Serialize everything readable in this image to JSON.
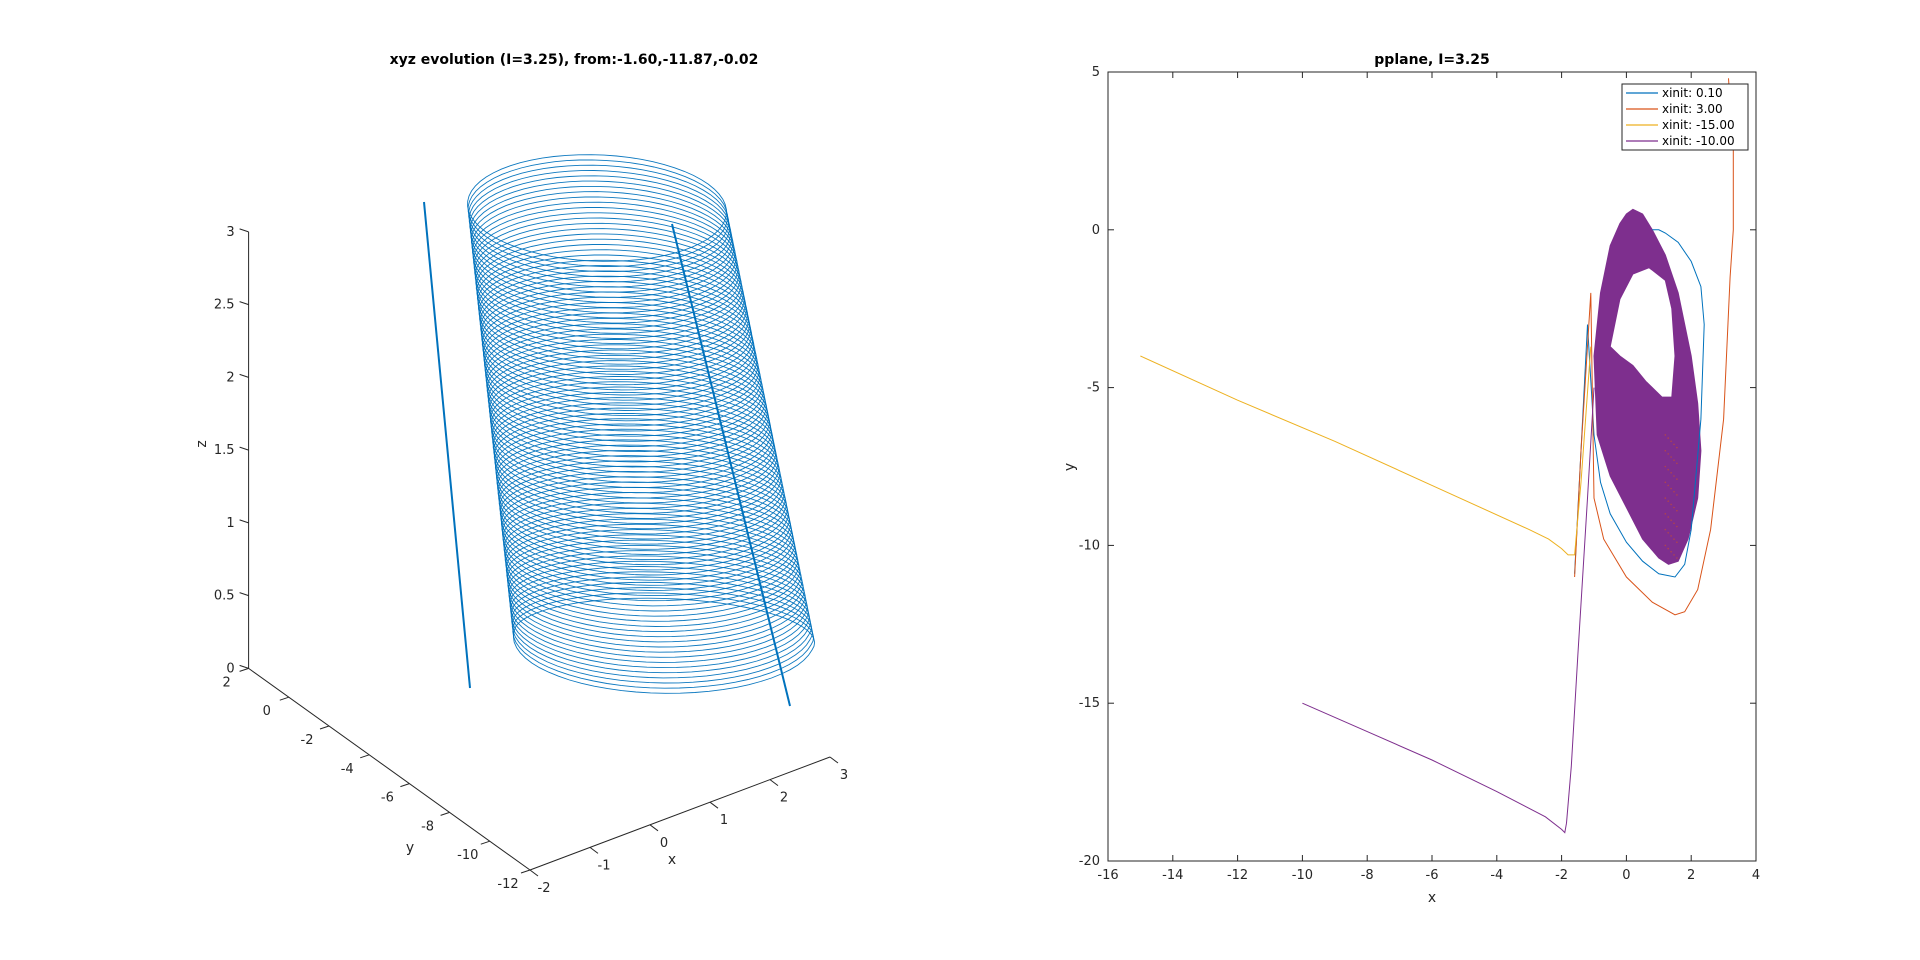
{
  "chart_data": [
    {
      "type": "line",
      "view": "3d",
      "title": "xyz evolution (I=3.25), from:-1.60,-11.87,-0.02",
      "xlabel": "x",
      "ylabel": "y",
      "zlabel": "z",
      "xlim": [
        -2,
        3
      ],
      "ylim": [
        -12,
        2
      ],
      "zlim": [
        0,
        3
      ],
      "x_ticks": [
        "-2",
        "-1",
        "0",
        "1",
        "2",
        "3"
      ],
      "y_ticks": [
        "2",
        "0",
        "-2",
        "-4",
        "-6",
        "-8",
        "-10",
        "-12"
      ],
      "z_ticks": [
        "0",
        "0.5",
        "1",
        "1.5",
        "2",
        "2.5",
        "3"
      ],
      "grid": false,
      "series": [
        {
          "color": "#0072BD",
          "description_points": {
            "x": [
              -1.6,
              -1.5,
              -1.0,
              0.0,
              1.0,
              2.0,
              2.3,
              2.0,
              1.0,
              0.0,
              -1.0,
              -1.5
            ],
            "y": [
              -11.87,
              -11.0,
              -9.5,
              -8.0,
              -6.5,
              -5.0,
              -4.0,
              -1.0,
              0.6,
              0.2,
              -1.5,
              -6.0
            ],
            "z": [
              -0.02,
              0.3,
              0.8,
              1.3,
              1.8,
              2.3,
              2.8,
              3.0,
              2.9,
              2.7,
              2.5,
              1.5
            ]
          }
        }
      ]
    },
    {
      "type": "line",
      "title": "pplane, I=3.25",
      "xlabel": "x",
      "ylabel": "y",
      "xlim": [
        -16,
        4
      ],
      "ylim": [
        -20,
        5
      ],
      "x_ticks": [
        "-16",
        "-14",
        "-12",
        "-10",
        "-8",
        "-6",
        "-4",
        "-2",
        "0",
        "2",
        "4"
      ],
      "y_ticks": [
        "5",
        "0",
        "-5",
        "-10",
        "-15",
        "-20"
      ],
      "legend_position": "top-right",
      "grid": false,
      "series": [
        {
          "name": "xinit: 0.10",
          "color": "#0072BD",
          "x": [
            -1.6,
            -1.4,
            -1.2,
            -1.0,
            -0.8,
            -0.5,
            0.0,
            0.5,
            1.0,
            1.5,
            1.8,
            2.0,
            2.3,
            2.4,
            2.3,
            2.0,
            1.6,
            1.2,
            1.0,
            0.8
          ],
          "y": [
            -10.9,
            -7.0,
            -3.0,
            -6.5,
            -8.0,
            -9.0,
            -9.9,
            -10.5,
            -10.9,
            -11.0,
            -10.6,
            -9.5,
            -6.0,
            -3.0,
            -1.8,
            -1.0,
            -0.4,
            -0.1,
            0.0,
            0.0
          ]
        },
        {
          "name": "xinit: 3.00",
          "color": "#D95319",
          "x": [
            -1.6,
            -1.4,
            -1.1,
            -1.0,
            -0.7,
            0.0,
            0.8,
            1.5,
            1.8,
            2.2,
            2.6,
            3.0,
            3.2,
            3.3,
            3.3,
            3.15
          ],
          "y": [
            -11.0,
            -7.0,
            -2.0,
            -8.5,
            -9.8,
            -11.0,
            -11.8,
            -12.2,
            -12.1,
            -11.4,
            -9.5,
            -6.0,
            -1.5,
            0.0,
            2.5,
            4.8
          ]
        },
        {
          "name": "xinit: -15.00",
          "color": "#EDB120",
          "x": [
            -15.0,
            -12.0,
            -9.0,
            -6.0,
            -3.0,
            -2.4,
            -2.0,
            -1.8,
            -1.6,
            -1.4,
            -1.1
          ],
          "y": [
            -4.0,
            -5.4,
            -6.7,
            -8.1,
            -9.5,
            -9.8,
            -10.1,
            -10.3,
            -10.3,
            -8.0,
            -3.7
          ]
        },
        {
          "name": "xinit: -10.00",
          "color": "#7E2F8E",
          "x": [
            -10.0,
            -8.0,
            -6.0,
            -4.0,
            -2.5,
            -2.0,
            -1.9,
            -1.85,
            -1.7,
            -1.5,
            -1.2,
            -1.0
          ],
          "y": [
            -15.0,
            -15.9,
            -16.8,
            -17.8,
            -18.6,
            -19.0,
            -19.1,
            -18.8,
            -17.0,
            -13.5,
            -8.5,
            -5.0
          ]
        }
      ],
      "filled_regions": [
        {
          "series": "xinit: -10.00",
          "outer_x": [
            -1.0,
            -0.8,
            -0.5,
            -0.2,
            0.0,
            0.2,
            0.5,
            0.8,
            1.2,
            1.6,
            2.0,
            2.2,
            2.3,
            2.2,
            1.9,
            1.6,
            1.3,
            1.0,
            0.5,
            0.0,
            -0.5,
            -0.9,
            -1.0
          ],
          "outer_y": [
            -4.0,
            -2.0,
            -0.5,
            0.2,
            0.5,
            0.65,
            0.5,
            0.0,
            -0.8,
            -2.0,
            -4.0,
            -5.5,
            -7.0,
            -8.5,
            -9.8,
            -10.5,
            -10.6,
            -10.4,
            -9.8,
            -8.8,
            -7.8,
            -6.5,
            -4.0
          ],
          "inner_x": [
            -0.5,
            -0.2,
            0.2,
            0.7,
            1.2,
            1.4,
            1.5,
            1.4,
            1.1,
            0.6,
            0.2,
            -0.2,
            -0.5
          ],
          "inner_y": [
            -3.7,
            -2.2,
            -1.4,
            -1.2,
            -1.6,
            -2.5,
            -4.0,
            -5.3,
            -5.3,
            -4.8,
            -4.3,
            -4.0,
            -3.7
          ]
        }
      ]
    }
  ]
}
